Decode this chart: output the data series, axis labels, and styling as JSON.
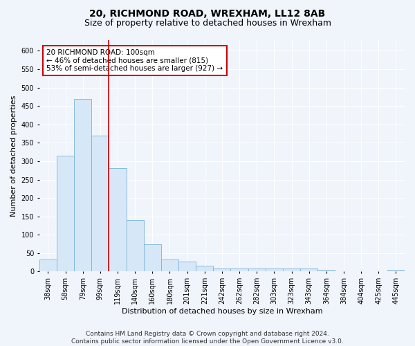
{
  "title1": "20, RICHMOND ROAD, WREXHAM, LL12 8AB",
  "title2": "Size of property relative to detached houses in Wrexham",
  "xlabel": "Distribution of detached houses by size in Wrexham",
  "ylabel": "Number of detached properties",
  "categories": [
    "38sqm",
    "58sqm",
    "79sqm",
    "99sqm",
    "119sqm",
    "140sqm",
    "160sqm",
    "180sqm",
    "201sqm",
    "221sqm",
    "242sqm",
    "262sqm",
    "282sqm",
    "303sqm",
    "323sqm",
    "343sqm",
    "364sqm",
    "384sqm",
    "404sqm",
    "425sqm",
    "445sqm"
  ],
  "values": [
    32,
    315,
    470,
    370,
    282,
    140,
    75,
    32,
    28,
    15,
    8,
    8,
    8,
    8,
    8,
    8,
    5,
    0,
    0,
    0,
    5
  ],
  "bar_color": "#d6e8f7",
  "bar_edge_color": "#7ab3d9",
  "bar_edge_width": 0.6,
  "vline_color": "#cc0000",
  "annotation_text": "20 RICHMOND ROAD: 100sqm\n← 46% of detached houses are smaller (815)\n53% of semi-detached houses are larger (927) →",
  "annotation_box_color": "white",
  "annotation_box_edge_color": "#cc0000",
  "annotation_fontsize": 7.5,
  "ylim": [
    0,
    630
  ],
  "yticks": [
    0,
    50,
    100,
    150,
    200,
    250,
    300,
    350,
    400,
    450,
    500,
    550,
    600
  ],
  "footnote": "Contains HM Land Registry data © Crown copyright and database right 2024.\nContains public sector information licensed under the Open Government Licence v3.0.",
  "title_fontsize": 10,
  "subtitle_fontsize": 9,
  "xlabel_fontsize": 8,
  "ylabel_fontsize": 8,
  "footnote_fontsize": 6.5,
  "bg_color": "#f0f4fb",
  "plot_bg_color": "#f0f4fb",
  "grid_color": "#ffffff",
  "tick_fontsize": 7
}
